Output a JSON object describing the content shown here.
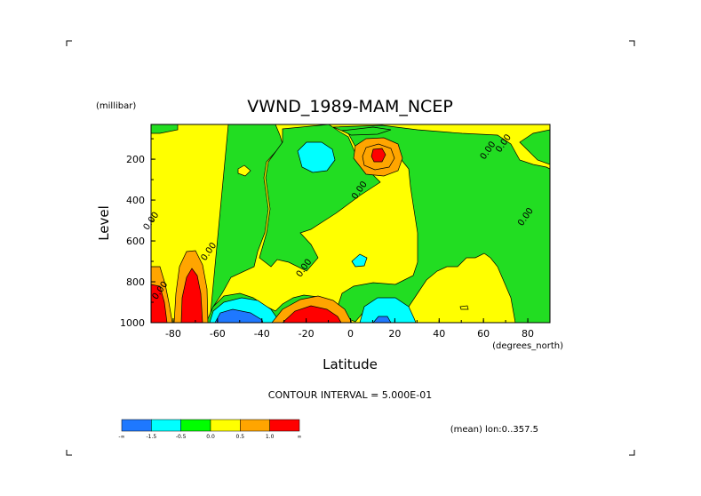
{
  "chart_data": {
    "type": "contour",
    "title": "VWND_1989-MAM_NCEP",
    "xlabel": "Latitude",
    "x_units": "(degrees_north)",
    "ylabel": "Level",
    "y_units": "(millibar)",
    "xlim": [
      -90,
      90
    ],
    "ylim": [
      1000,
      30
    ],
    "x_ticks": [
      -80,
      -60,
      -40,
      -20,
      0,
      20,
      40,
      60,
      80
    ],
    "y_ticks": [
      200,
      400,
      600,
      800,
      1000
    ],
    "contour_interval_text": "CONTOUR INTERVAL = 5.000E-01",
    "footnote": "(mean) lon:0..357.5",
    "contour_labels": [
      {
        "text": "0.00",
        "lat": 70,
        "lev": 130
      },
      {
        "text": "0.00",
        "lat": 63,
        "lev": 165
      },
      {
        "text": "0.00",
        "lat": 5,
        "lev": 360
      },
      {
        "text": "0.00",
        "lat": 80,
        "lev": 490
      },
      {
        "text": "0.00",
        "lat": -89,
        "lev": 510
      },
      {
        "text": "0.00",
        "lat": -63,
        "lev": 660
      },
      {
        "text": "0.00",
        "lat": -20,
        "lev": 740
      },
      {
        "text": "0.00",
        "lat": -85,
        "lev": 850
      }
    ],
    "colorbar": {
      "levels": [
        "-∞",
        "-1.5",
        "-0.5",
        "0.0",
        "0.5",
        "1.0",
        "∞"
      ],
      "colors": [
        "#1e78ff",
        "#00ffff",
        "#00ff00",
        "#ffff00",
        "#ffa500",
        "#ff0000"
      ]
    }
  },
  "colors": {
    "deep_blue": "#1e78ff",
    "cyan": "#00ffff",
    "green": "#22dd22",
    "yellow": "#ffff00",
    "orange": "#ffa500",
    "red": "#ff0000"
  }
}
